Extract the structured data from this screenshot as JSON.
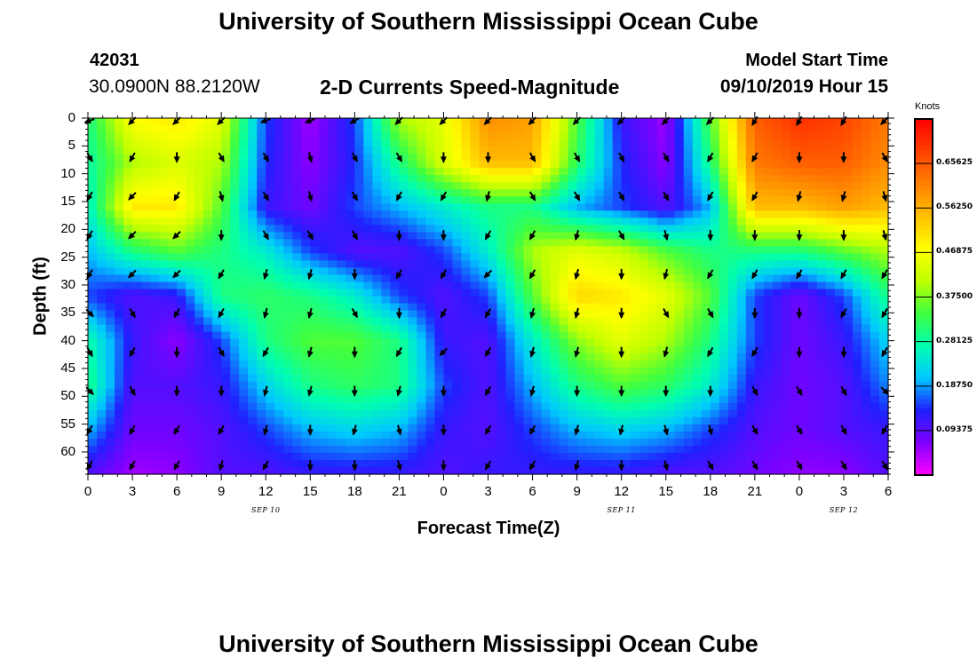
{
  "header": {
    "title": "University of Southern Mississippi Ocean Cube",
    "station_id": "42031",
    "station_coords": "30.0900N 88.2120W",
    "plot_title": "2-D Currents Speed-Magnitude",
    "model_start_label": "Model Start Time",
    "model_start_value": "09/10/2019 Hour 15"
  },
  "footer": {
    "title": "University of Southern Mississippi Ocean Cube"
  },
  "colorbar": {
    "unit": "Knots",
    "ticks": [
      "0.65625",
      "0.56250",
      "0.46875",
      "0.37500",
      "0.28125",
      "0.18750",
      "0.09375"
    ],
    "colors": [
      "#ff00ff",
      "#8000ff",
      "#2020ff",
      "#00c8ff",
      "#00ffb0",
      "#40ff40",
      "#c0ff00",
      "#ffff00",
      "#ffc000",
      "#ff8000",
      "#ff4000",
      "#ff0000"
    ]
  },
  "chart_data": {
    "type": "heatmap",
    "title": "2-D Currents Speed-Magnitude",
    "xlabel": "Forecast Time(Z)",
    "ylabel": "Depth (ft)",
    "x_tick_labels": [
      "0",
      "3",
      "6",
      "9",
      "12",
      "15",
      "18",
      "21",
      "0",
      "3",
      "6",
      "9",
      "12",
      "15",
      "18",
      "21",
      "0",
      "3",
      "6"
    ],
    "x_day_labels": [
      {
        "label": "SEP 10",
        "hour_index": 4
      },
      {
        "label": "SEP 11",
        "hour_index": 12
      },
      {
        "label": "SEP 12",
        "hour_index": 17
      }
    ],
    "y_tick_labels": [
      "0",
      "5",
      "10",
      "15",
      "20",
      "25",
      "30",
      "35",
      "40",
      "45",
      "50",
      "55",
      "60"
    ],
    "x_range_hours": [
      0,
      54
    ],
    "y_range_ft": [
      0,
      64
    ],
    "value_unit": "Knots",
    "value_range": [
      0.0,
      0.75
    ],
    "grid": false,
    "speed_grid_depths_ft": [
      0,
      8,
      16,
      24,
      32,
      40,
      48,
      56,
      64
    ],
    "speed_grid_hours": [
      0,
      3,
      6,
      9,
      12,
      15,
      18,
      21,
      24,
      27,
      30,
      33,
      36,
      39,
      42,
      45,
      48,
      51,
      54
    ],
    "speed_knots": [
      [
        0.3,
        0.48,
        0.5,
        0.45,
        0.15,
        0.05,
        0.15,
        0.4,
        0.45,
        0.6,
        0.58,
        0.35,
        0.12,
        0.05,
        0.35,
        0.65,
        0.7,
        0.68,
        0.62
      ],
      [
        0.28,
        0.4,
        0.44,
        0.4,
        0.14,
        0.06,
        0.14,
        0.3,
        0.44,
        0.55,
        0.55,
        0.32,
        0.14,
        0.06,
        0.3,
        0.62,
        0.65,
        0.65,
        0.6
      ],
      [
        0.25,
        0.5,
        0.5,
        0.35,
        0.12,
        0.08,
        0.15,
        0.2,
        0.25,
        0.3,
        0.3,
        0.2,
        0.15,
        0.1,
        0.2,
        0.55,
        0.55,
        0.58,
        0.55
      ],
      [
        0.2,
        0.3,
        0.35,
        0.3,
        0.25,
        0.15,
        0.1,
        0.1,
        0.15,
        0.25,
        0.4,
        0.45,
        0.42,
        0.35,
        0.3,
        0.3,
        0.3,
        0.35,
        0.4
      ],
      [
        0.15,
        0.1,
        0.12,
        0.3,
        0.32,
        0.3,
        0.25,
        0.15,
        0.1,
        0.15,
        0.35,
        0.52,
        0.5,
        0.45,
        0.35,
        0.15,
        0.08,
        0.15,
        0.3
      ],
      [
        0.28,
        0.12,
        0.06,
        0.15,
        0.3,
        0.35,
        0.35,
        0.3,
        0.12,
        0.1,
        0.25,
        0.38,
        0.45,
        0.4,
        0.3,
        0.15,
        0.08,
        0.12,
        0.22
      ],
      [
        0.3,
        0.1,
        0.1,
        0.12,
        0.22,
        0.3,
        0.32,
        0.3,
        0.15,
        0.1,
        0.2,
        0.3,
        0.35,
        0.32,
        0.25,
        0.12,
        0.08,
        0.1,
        0.18
      ],
      [
        0.2,
        0.08,
        0.08,
        0.1,
        0.15,
        0.2,
        0.22,
        0.2,
        0.12,
        0.1,
        0.15,
        0.2,
        0.22,
        0.2,
        0.15,
        0.1,
        0.08,
        0.1,
        0.12
      ],
      [
        0.1,
        0.05,
        0.06,
        0.1,
        0.1,
        0.12,
        0.12,
        0.12,
        0.1,
        0.12,
        0.12,
        0.12,
        0.12,
        0.1,
        0.1,
        0.08,
        0.06,
        0.06,
        0.1
      ]
    ],
    "vector_depths_ft": [
      0,
      7,
      14,
      21,
      28,
      35,
      42,
      49,
      56,
      63
    ],
    "vector_hours": [
      0,
      3,
      6,
      9,
      12,
      15,
      18,
      21,
      24,
      27,
      30,
      33,
      36,
      39,
      42,
      45,
      48,
      51,
      54
    ],
    "vector_direction_deg": [
      [
        200,
        225,
        225,
        225,
        200,
        200,
        210,
        225,
        225,
        225,
        225,
        225,
        225,
        225,
        225,
        240,
        240,
        240,
        225
      ],
      [
        300,
        240,
        270,
        300,
        300,
        285,
        300,
        300,
        270,
        270,
        300,
        300,
        300,
        300,
        240,
        240,
        270,
        270,
        300
      ],
      [
        240,
        225,
        240,
        285,
        300,
        285,
        300,
        240,
        240,
        255,
        300,
        300,
        300,
        300,
        240,
        240,
        255,
        255,
        285
      ],
      [
        240,
        225,
        225,
        270,
        300,
        300,
        300,
        270,
        270,
        240,
        240,
        255,
        300,
        285,
        270,
        270,
        270,
        270,
        285
      ],
      [
        240,
        225,
        225,
        240,
        255,
        255,
        270,
        240,
        240,
        225,
        240,
        255,
        270,
        255,
        240,
        240,
        240,
        240,
        240
      ],
      [
        315,
        300,
        240,
        240,
        255,
        255,
        300,
        270,
        240,
        240,
        255,
        255,
        270,
        300,
        300,
        270,
        270,
        240,
        240
      ],
      [
        300,
        240,
        270,
        300,
        240,
        255,
        270,
        240,
        225,
        240,
        255,
        255,
        270,
        255,
        240,
        240,
        270,
        270,
        240
      ],
      [
        315,
        300,
        270,
        270,
        255,
        255,
        270,
        255,
        270,
        240,
        255,
        270,
        270,
        270,
        270,
        300,
        300,
        300,
        315
      ],
      [
        240,
        240,
        240,
        240,
        255,
        270,
        255,
        285,
        270,
        240,
        240,
        255,
        255,
        285,
        285,
        300,
        300,
        300,
        240
      ],
      [
        240,
        240,
        240,
        255,
        240,
        270,
        270,
        285,
        270,
        240,
        240,
        255,
        270,
        285,
        300,
        300,
        300,
        300,
        300
      ]
    ]
  }
}
